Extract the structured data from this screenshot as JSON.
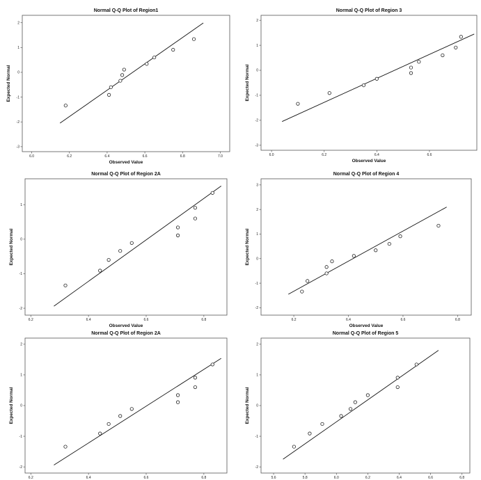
{
  "chart_data": [
    {
      "type": "scatter",
      "title": "Normal Q-Q Plot of Region1",
      "xlabel": "Observed Value",
      "ylabel": "Expected Normal",
      "xticks": [
        "6.0",
        "6.2",
        "6.4",
        "6.6",
        "6.8",
        "7.0"
      ],
      "yticks": [
        "2",
        "1",
        "0",
        "-1",
        "-2",
        "-3"
      ],
      "xlim": [
        5.95,
        7.05
      ],
      "ylim": [
        -3.2,
        2.3
      ],
      "x": [
        6.18,
        6.41,
        6.42,
        6.47,
        6.48,
        6.49,
        6.61,
        6.65,
        6.75,
        6.86
      ],
      "y": [
        -1.34,
        -0.91,
        -0.6,
        -0.34,
        -0.11,
        0.11,
        0.34,
        0.6,
        0.91,
        1.34
      ],
      "line": [
        [
          6.15,
          -2.05
        ],
        [
          6.91,
          1.99
        ]
      ]
    },
    {
      "type": "scatter",
      "title": "Normal Q-Q Plot of Region 3",
      "xlabel": "Observed Value",
      "ylabel": "Expected Normal",
      "xticks": [
        "6.0",
        "6.2",
        "6.4",
        "6.6"
      ],
      "yticks": [
        "2",
        "1",
        "0",
        "-1",
        "-2",
        "-3"
      ],
      "xlim": [
        5.96,
        6.78
      ],
      "ylim": [
        -3.2,
        2.2
      ],
      "x": [
        6.1,
        6.22,
        6.35,
        6.4,
        6.53,
        6.53,
        6.56,
        6.65,
        6.7,
        6.72
      ],
      "y": [
        -1.34,
        -0.91,
        -0.6,
        -0.34,
        -0.11,
        0.11,
        0.34,
        0.6,
        0.91,
        1.34
      ],
      "line": [
        [
          6.04,
          -2.05
        ],
        [
          6.77,
          1.45
        ]
      ]
    },
    {
      "type": "scatter",
      "title": "Normal Q-Q Plot of Region 2A",
      "xlabel": "Observed Value",
      "ylabel": "Expected Normal",
      "xticks": [
        "6.2",
        "6.4",
        "6.6",
        "6.8"
      ],
      "yticks": [
        "1",
        "0",
        "-1",
        "-2"
      ],
      "xlim": [
        6.18,
        6.88
      ],
      "ylim": [
        -2.2,
        1.75
      ],
      "x": [
        6.32,
        6.44,
        6.47,
        6.51,
        6.55,
        6.71,
        6.71,
        6.77,
        6.77,
        6.83
      ],
      "y": [
        -1.34,
        -0.91,
        -0.6,
        -0.34,
        -0.11,
        0.11,
        0.34,
        0.6,
        0.91,
        1.34
      ],
      "line": [
        [
          6.28,
          -1.94
        ],
        [
          6.86,
          1.54
        ]
      ]
    },
    {
      "type": "scatter",
      "title": "Normal Q-Q Plot of Region 4",
      "xlabel": "Observed Value",
      "ylabel": "Expected Normal",
      "xticks": [
        "6.2",
        "6.4",
        "6.6",
        "6.8"
      ],
      "yticks": [
        "3",
        "2",
        "1",
        "0",
        "-1",
        "-2"
      ],
      "xlim": [
        6.08,
        6.85
      ],
      "ylim": [
        -2.3,
        3.25
      ],
      "x": [
        6.23,
        6.25,
        6.32,
        6.32,
        6.34,
        6.42,
        6.5,
        6.55,
        6.59,
        6.73
      ],
      "y": [
        -1.34,
        -0.91,
        -0.6,
        -0.34,
        -0.11,
        0.11,
        0.34,
        0.6,
        0.91,
        1.34
      ],
      "line": [
        [
          6.18,
          -1.45
        ],
        [
          6.76,
          2.1
        ]
      ]
    },
    {
      "type": "scatter",
      "title": "Normal Q-Q Plot of Region 2A",
      "xlabel": "Observed Value",
      "ylabel": "Expected Normal",
      "xticks": [
        "6.2",
        "6.4",
        "6.6",
        "6.8"
      ],
      "yticks": [
        "2",
        "1",
        "0",
        "-1",
        "-2"
      ],
      "xlim": [
        6.18,
        6.88
      ],
      "ylim": [
        -2.2,
        2.2
      ],
      "x": [
        6.32,
        6.44,
        6.47,
        6.51,
        6.55,
        6.71,
        6.71,
        6.77,
        6.77,
        6.83
      ],
      "y": [
        -1.34,
        -0.91,
        -0.6,
        -0.34,
        -0.11,
        0.11,
        0.34,
        0.6,
        0.91,
        1.34
      ],
      "line": [
        [
          6.28,
          -1.94
        ],
        [
          6.86,
          1.54
        ]
      ]
    },
    {
      "type": "scatter",
      "title": "Normal Q-Q Plot of Region 5",
      "xlabel": "Observed Value",
      "ylabel": "Expected Normal",
      "xticks": [
        "5.6",
        "5.8",
        "6.0",
        "6.2",
        "6.4",
        "6.6",
        "6.8"
      ],
      "yticks": [
        "2",
        "1",
        "0",
        "-1",
        "-2"
      ],
      "xlim": [
        5.52,
        6.85
      ],
      "ylim": [
        -2.2,
        2.2
      ],
      "x": [
        5.73,
        5.83,
        5.91,
        6.03,
        6.09,
        6.12,
        6.2,
        6.39,
        6.39,
        6.51
      ],
      "y": [
        -1.34,
        -0.91,
        -0.6,
        -0.34,
        -0.11,
        0.11,
        0.34,
        0.6,
        0.91,
        1.34
      ],
      "line": [
        [
          5.66,
          -1.75
        ],
        [
          6.65,
          1.8
        ]
      ]
    }
  ]
}
